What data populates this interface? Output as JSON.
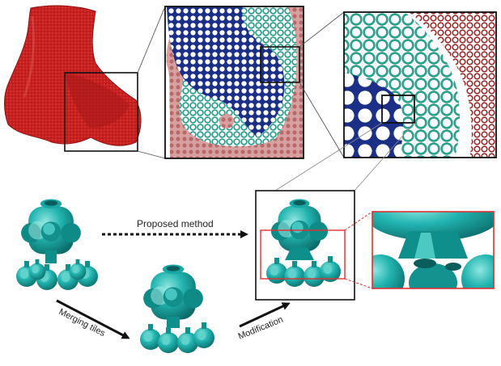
{
  "labels": {
    "proposed_method": "Proposed method",
    "merging_tiles": "Merging tiles",
    "modification": "Modification"
  },
  "colors": {
    "bone_red": "#c81f1f",
    "navy_lattice": "#1b2f86",
    "teal_lattice": "#2fa08e",
    "pink_lattice": "#c07b7b",
    "dark_red_lattice": "#9a2a2a",
    "tile_teal": "#1fb3b0",
    "highlight_red": "#e03030"
  }
}
